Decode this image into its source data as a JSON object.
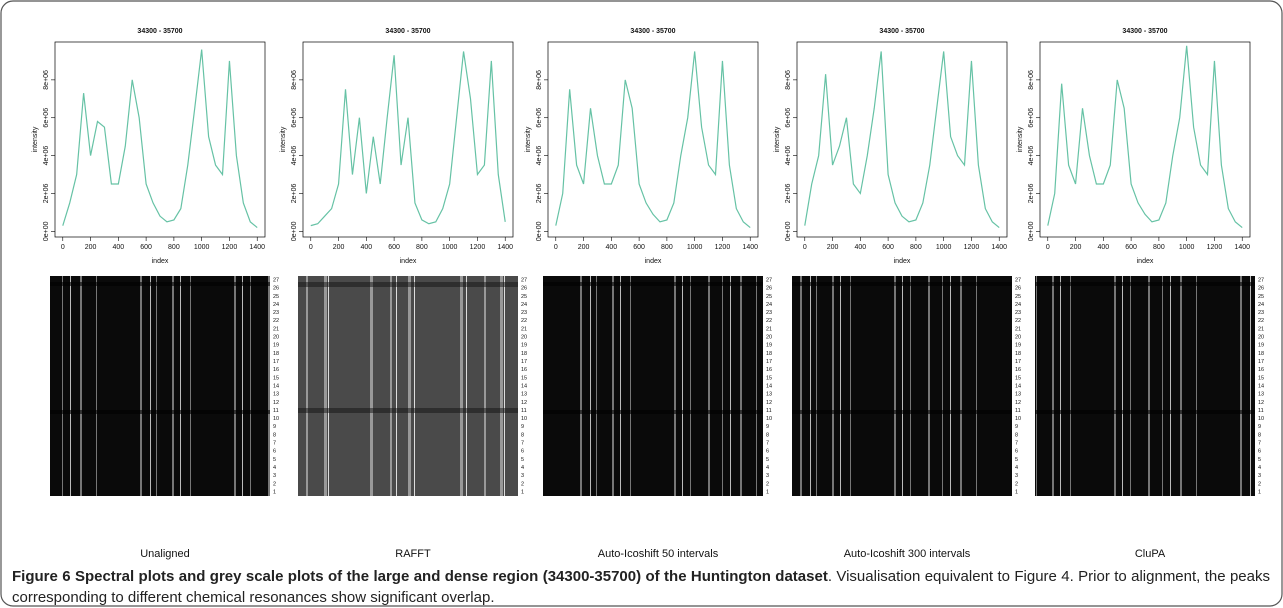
{
  "chart_data": [
    {
      "type": "line",
      "title": "34300 - 35700",
      "xlabel": "index",
      "ylabel": "intensity",
      "label": "Unaligned",
      "x": [
        0,
        50,
        100,
        150,
        200,
        250,
        300,
        350,
        400,
        450,
        500,
        550,
        600,
        650,
        700,
        750,
        800,
        850,
        900,
        950,
        1000,
        1050,
        1100,
        1150,
        1200,
        1250,
        1300,
        1350,
        1400
      ],
      "series": [
        {
          "color": "#66c2a5",
          "values": [
            300000,
            1500000,
            3000000,
            7300000,
            4000000,
            5800000,
            5500000,
            2500000,
            2500000,
            4500000,
            8000000,
            6000000,
            2500000,
            1500000,
            800000,
            500000,
            600000,
            1200000,
            3500000,
            6500000,
            9600000,
            5000000,
            3500000,
            3000000,
            9000000,
            4000000,
            1500000,
            500000,
            200000
          ]
        }
      ],
      "xlim": [
        -56,
        1456
      ],
      "xticks": [
        0,
        200,
        400,
        600,
        800,
        1000,
        1200,
        1400
      ],
      "ylim": [
        -300000,
        10000000
      ],
      "yticks": [
        {
          "value": 0,
          "label": "0e+00"
        },
        {
          "value": 2000000,
          "label": "2e+06"
        },
        {
          "value": 4000000,
          "label": "4e+06"
        },
        {
          "value": 6000000,
          "label": "6e+06"
        },
        {
          "value": 8000000,
          "label": "8e+06"
        }
      ]
    },
    {
      "type": "line",
      "title": "34300 - 35700",
      "xlabel": "index",
      "ylabel": "intensity",
      "label": "RAFFT",
      "x": [
        0,
        50,
        100,
        150,
        200,
        250,
        300,
        350,
        400,
        450,
        500,
        550,
        600,
        650,
        700,
        750,
        800,
        850,
        900,
        950,
        1000,
        1050,
        1100,
        1150,
        1200,
        1250,
        1300,
        1350,
        1400
      ],
      "series": [
        {
          "color": "#66c2a5",
          "values": [
            300000,
            400000,
            800000,
            1200000,
            2500000,
            7500000,
            3000000,
            6000000,
            2000000,
            5000000,
            2500000,
            6000000,
            9300000,
            3500000,
            6000000,
            1500000,
            600000,
            400000,
            500000,
            1200000,
            2500000,
            6000000,
            9500000,
            7000000,
            3000000,
            3500000,
            9000000,
            3000000,
            500000
          ]
        }
      ],
      "xlim": [
        -56,
        1456
      ],
      "xticks": [
        0,
        200,
        400,
        600,
        800,
        1000,
        1200,
        1400
      ],
      "ylim": [
        -300000,
        10000000
      ],
      "yticks": [
        {
          "value": 0,
          "label": "0e+00"
        },
        {
          "value": 2000000,
          "label": "2e+06"
        },
        {
          "value": 4000000,
          "label": "4e+06"
        },
        {
          "value": 6000000,
          "label": "6e+06"
        },
        {
          "value": 8000000,
          "label": "8e+06"
        }
      ]
    },
    {
      "type": "line",
      "title": "34300 - 35700",
      "xlabel": "index",
      "ylabel": "intensity",
      "label": "Auto-Icoshift 50 intervals",
      "x": [
        0,
        50,
        100,
        150,
        200,
        250,
        300,
        350,
        400,
        450,
        500,
        550,
        600,
        650,
        700,
        750,
        800,
        850,
        900,
        950,
        1000,
        1050,
        1100,
        1150,
        1200,
        1250,
        1300,
        1350,
        1400
      ],
      "series": [
        {
          "color": "#66c2a5",
          "values": [
            300000,
            2000000,
            7500000,
            3500000,
            2500000,
            6500000,
            4000000,
            2500000,
            2500000,
            3500000,
            8000000,
            6500000,
            2500000,
            1500000,
            900000,
            500000,
            600000,
            1500000,
            4000000,
            6000000,
            9500000,
            5500000,
            3500000,
            3000000,
            9000000,
            3500000,
            1200000,
            500000,
            200000
          ]
        }
      ],
      "xlim": [
        -56,
        1456
      ],
      "xticks": [
        0,
        200,
        400,
        600,
        800,
        1000,
        1200,
        1400
      ],
      "ylim": [
        -300000,
        10000000
      ],
      "yticks": [
        {
          "value": 0,
          "label": "0e+00"
        },
        {
          "value": 2000000,
          "label": "2e+06"
        },
        {
          "value": 4000000,
          "label": "4e+06"
        },
        {
          "value": 6000000,
          "label": "6e+06"
        },
        {
          "value": 8000000,
          "label": "8e+06"
        }
      ]
    },
    {
      "type": "line",
      "title": "34300 - 35700",
      "xlabel": "index",
      "ylabel": "intensity",
      "label": "Auto-Icoshift 300 intervals",
      "x": [
        0,
        50,
        100,
        150,
        200,
        250,
        300,
        350,
        400,
        450,
        500,
        550,
        600,
        650,
        700,
        750,
        800,
        850,
        900,
        950,
        1000,
        1050,
        1100,
        1150,
        1200,
        1250,
        1300,
        1350,
        1400
      ],
      "series": [
        {
          "color": "#66c2a5",
          "values": [
            300000,
            2500000,
            4000000,
            8300000,
            3500000,
            4500000,
            6000000,
            2500000,
            2000000,
            4000000,
            6500000,
            9500000,
            3000000,
            1500000,
            800000,
            500000,
            600000,
            1500000,
            3500000,
            6500000,
            9500000,
            5000000,
            4000000,
            3500000,
            9000000,
            3500000,
            1200000,
            500000,
            200000
          ]
        }
      ],
      "xlim": [
        -56,
        1456
      ],
      "xticks": [
        0,
        200,
        400,
        600,
        800,
        1000,
        1200,
        1400
      ],
      "ylim": [
        -300000,
        10000000
      ],
      "yticks": [
        {
          "value": 0,
          "label": "0e+00"
        },
        {
          "value": 2000000,
          "label": "2e+06"
        },
        {
          "value": 4000000,
          "label": "4e+06"
        },
        {
          "value": 6000000,
          "label": "6e+06"
        },
        {
          "value": 8000000,
          "label": "8e+06"
        }
      ]
    },
    {
      "type": "line",
      "title": "34300 - 35700",
      "xlabel": "index",
      "ylabel": "intensity",
      "label": "CluPA",
      "x": [
        0,
        50,
        100,
        150,
        200,
        250,
        300,
        350,
        400,
        450,
        500,
        550,
        600,
        650,
        700,
        750,
        800,
        850,
        900,
        950,
        1000,
        1050,
        1100,
        1150,
        1200,
        1250,
        1300,
        1350,
        1400
      ],
      "series": [
        {
          "color": "#66c2a5",
          "values": [
            300000,
            2000000,
            7800000,
            3500000,
            2500000,
            6500000,
            4000000,
            2500000,
            2500000,
            3500000,
            8000000,
            6500000,
            2500000,
            1500000,
            900000,
            500000,
            600000,
            1500000,
            4000000,
            6000000,
            9800000,
            5500000,
            3500000,
            3000000,
            9000000,
            3500000,
            1200000,
            500000,
            200000
          ]
        }
      ],
      "xlim": [
        -56,
        1456
      ],
      "xticks": [
        0,
        200,
        400,
        600,
        800,
        1000,
        1200,
        1400
      ],
      "ylim": [
        -300000,
        10000000
      ],
      "yticks": [
        {
          "value": 0,
          "label": "0e+00"
        },
        {
          "value": 2000000,
          "label": "2e+06"
        },
        {
          "value": 4000000,
          "label": "4e+06"
        },
        {
          "value": 6000000,
          "label": "6e+06"
        },
        {
          "value": 8000000,
          "label": "8e+06"
        }
      ]
    }
  ],
  "heatmap_row_labels": [
    1,
    2,
    3,
    4,
    5,
    6,
    7,
    8,
    9,
    10,
    11,
    12,
    13,
    14,
    15,
    16,
    17,
    18,
    19,
    20,
    21,
    22,
    23,
    24,
    25,
    26,
    27
  ],
  "caption": {
    "title": "Figure 6 Spectral plots and grey scale plots of the large and dense region (34300-35700) of the Huntington dataset",
    "text": ". Visualisation equivalent to Figure 4. Prior to alignment, the peaks corresponding to different chemical resonances show significant overlap."
  }
}
